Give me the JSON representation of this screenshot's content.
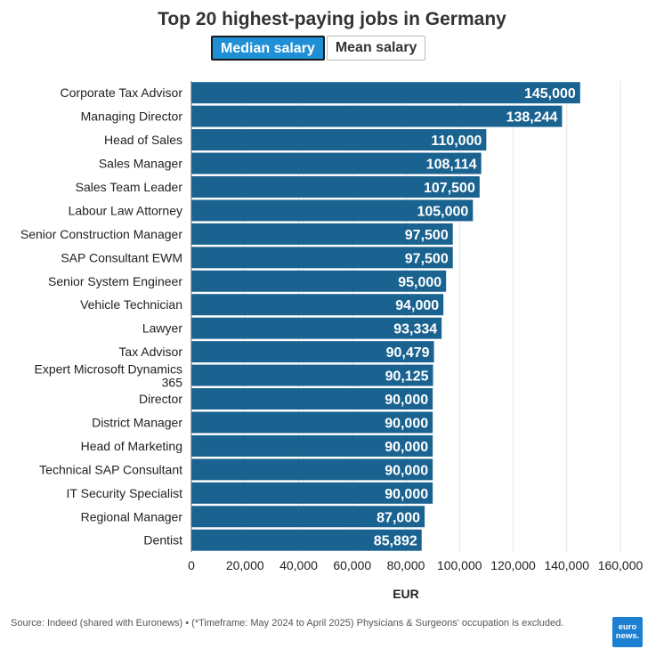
{
  "header": {
    "title": "Top 20 highest-paying jobs in Germany"
  },
  "toggle": {
    "median_label": "Median salary",
    "mean_label": "Mean salary",
    "active": "median"
  },
  "chart_data": {
    "type": "bar",
    "orientation": "horizontal",
    "categories": [
      "Corporate Tax Advisor",
      "Managing Director",
      "Head of Sales",
      "Sales Manager",
      "Sales Team Leader",
      "Labour Law Attorney",
      "Senior Construction Manager",
      "SAP Consultant EWM",
      "Senior System Engineer",
      "Vehicle Technician",
      "Lawyer",
      "Tax Advisor",
      "Expert Microsoft Dynamics 365",
      "Director",
      "District Manager",
      "Head of Marketing",
      "Technical SAP Consultant",
      "IT Security Specialist",
      "Regional Manager",
      "Dentist"
    ],
    "values": [
      145000,
      138244,
      110000,
      108114,
      107500,
      105000,
      97500,
      97500,
      95000,
      94000,
      93334,
      90479,
      90125,
      90000,
      90000,
      90000,
      90000,
      90000,
      87000,
      85892
    ],
    "value_labels": [
      "145,000",
      "138,244",
      "110,000",
      "108,114",
      "107,500",
      "105,000",
      "97,500",
      "97,500",
      "95,000",
      "94,000",
      "93,334",
      "90,479",
      "90,125",
      "90,000",
      "90,000",
      "90,000",
      "90,000",
      "90,000",
      "87,000",
      "85,892"
    ],
    "xlabel": "EUR",
    "xlim": [
      0,
      160000
    ],
    "xticks": [
      0,
      20000,
      40000,
      60000,
      80000,
      100000,
      120000,
      140000,
      160000
    ],
    "xtick_labels": [
      "0",
      "20,000",
      "40,000",
      "60,000",
      "80,000",
      "100,000",
      "120,000",
      "140,000",
      "160,000"
    ],
    "bar_color": "#1a6390",
    "grid": true
  },
  "footer": {
    "source": "Source: Indeed (shared with Euronews) • (*Timeframe: May 2024 to April 2025) Physicians & Surgeons' occupation is excluded.",
    "logo_line1": "euro",
    "logo_line2": "news."
  }
}
